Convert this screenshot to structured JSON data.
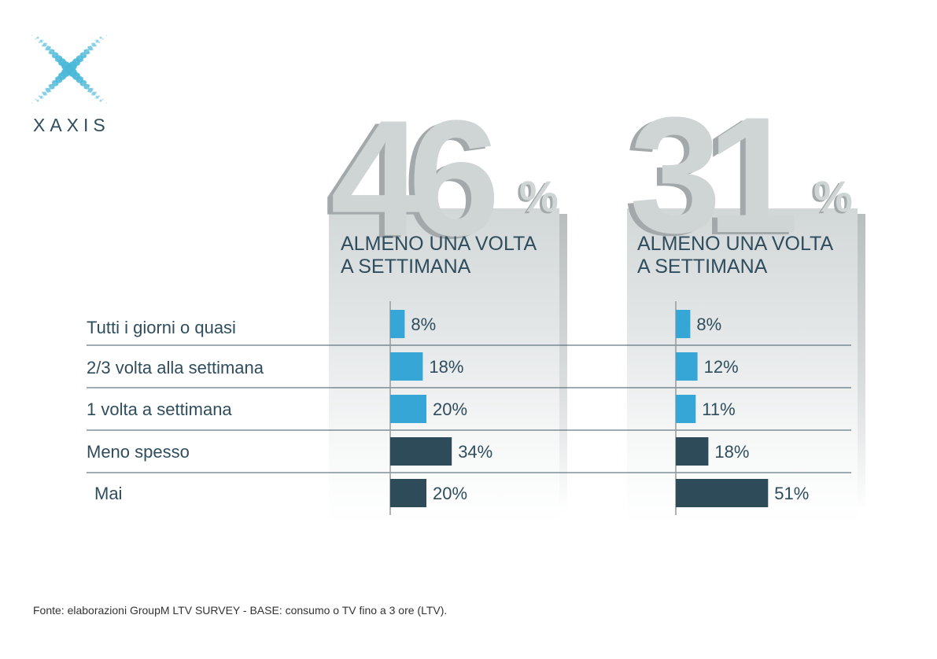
{
  "logo": {
    "text": "XAXIS",
    "icon": "dotted-x-logo",
    "color": "#4bb8d8"
  },
  "headline": [
    {
      "value": "46",
      "unit": "%",
      "subtitle_line1": "ALMENO UNA VOLTA",
      "subtitle_line2": "A SETTIMANA"
    },
    {
      "value": "31",
      "unit": "%",
      "subtitle_line1": "ALMENO UNA VOLTA",
      "subtitle_line2": "A SETTIMANA"
    }
  ],
  "chart_data": {
    "type": "bar",
    "orientation": "horizontal",
    "categories": [
      "Tutti i giorni o quasi",
      "2/3 volta alla settimana",
      "1 volta a settimana",
      "Meno spesso",
      "Mai"
    ],
    "series": [
      {
        "values": [
          8,
          18,
          20,
          34,
          20
        ],
        "labels": [
          "8%",
          "18%",
          "20%",
          "34%",
          "20%"
        ]
      },
      {
        "values": [
          8,
          12,
          11,
          18,
          51
        ],
        "labels": [
          "8%",
          "12%",
          "11%",
          "18%",
          "51%"
        ]
      }
    ],
    "bar_colors": [
      "#35a6d6",
      "#35a6d6",
      "#35a6d6",
      "#2d4b59",
      "#2d4b59"
    ],
    "xlim": [
      0,
      60
    ],
    "grid": false
  },
  "source": "Fonte: elaborazioni GroupM LTV SURVEY - BASE: consumo o TV fino a 3 ore (LTV)."
}
